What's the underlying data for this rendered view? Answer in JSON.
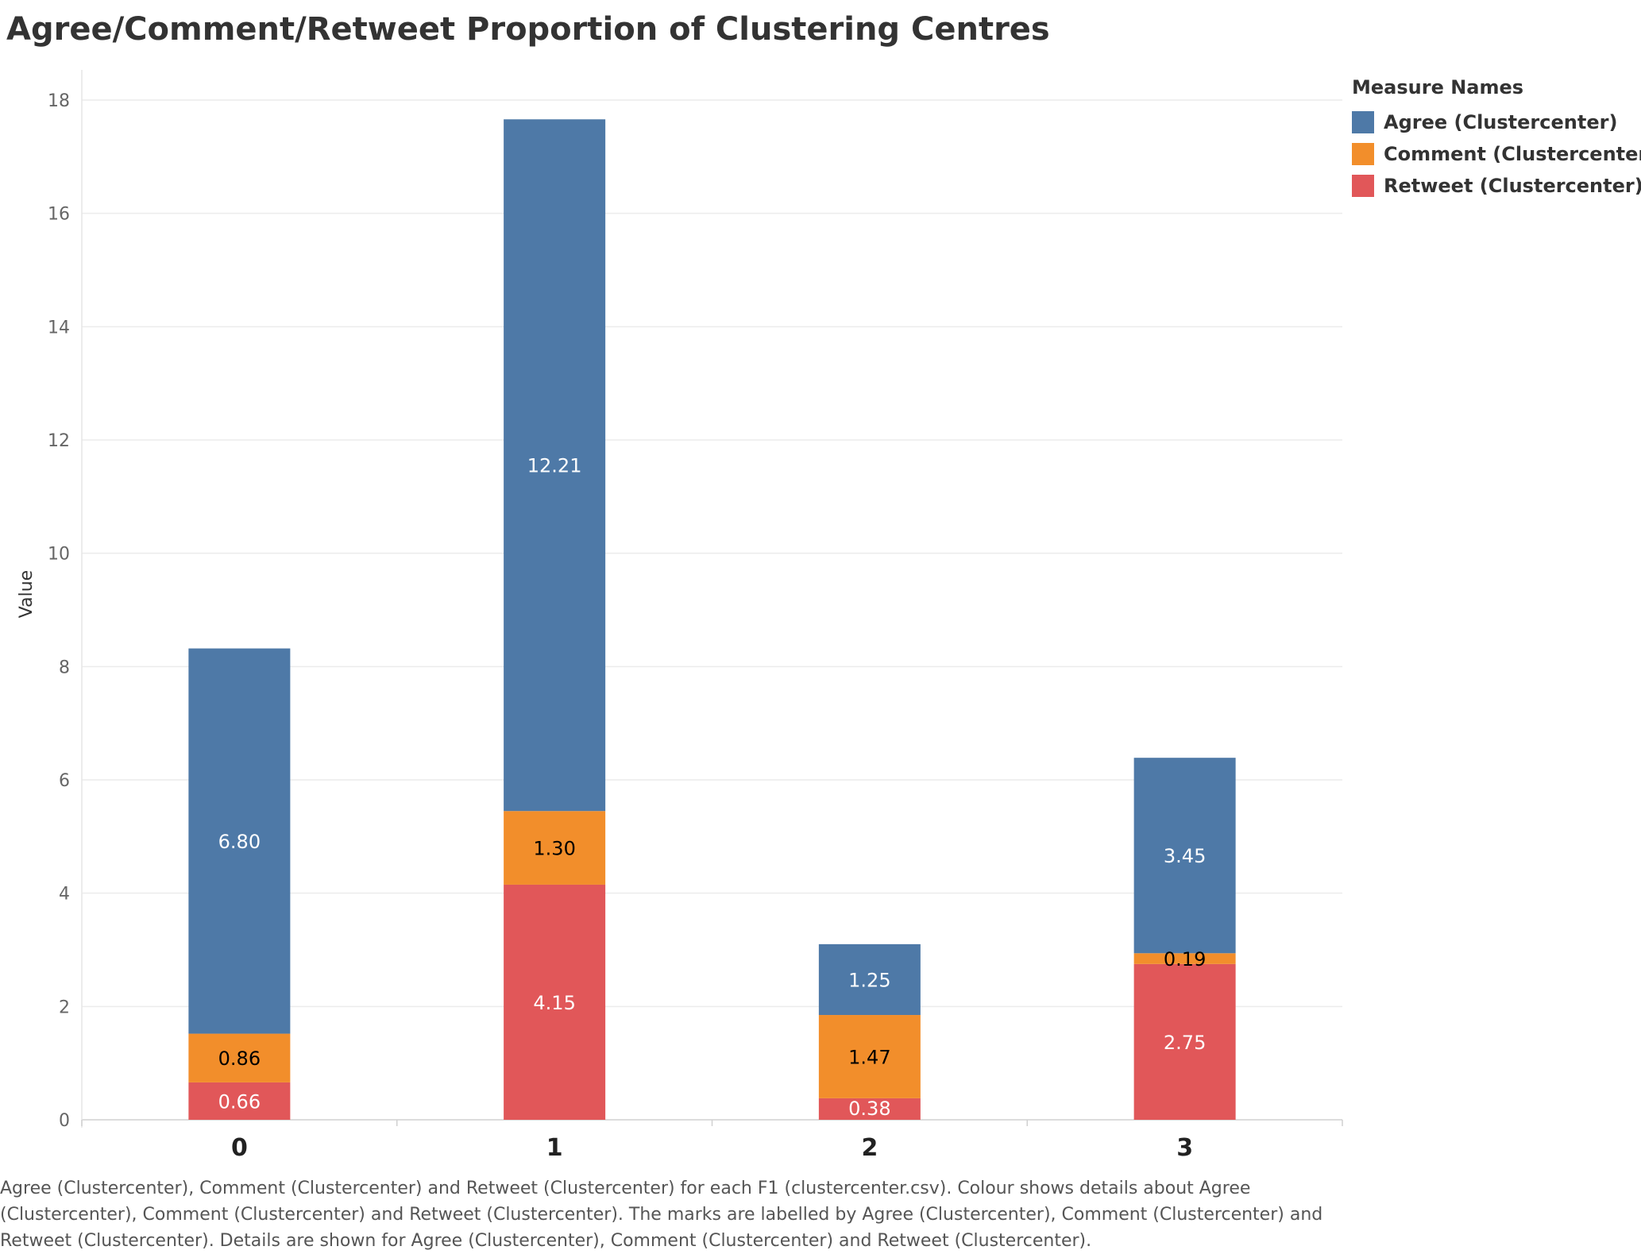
{
  "title": "Agree/Comment/Retweet Proportion of Clustering Centres",
  "legend": {
    "title": "Measure Names",
    "items": [
      {
        "label": "Agree (Clustercenter)",
        "color": "#4e79a7"
      },
      {
        "label": "Comment (Clustercenter)",
        "color": "#f28e2b"
      },
      {
        "label": "Retweet (Clustercenter)",
        "color": "#e15759"
      }
    ]
  },
  "caption": "Agree (Clustercenter), Comment (Clustercenter) and Retweet (Clustercenter) for each F1 (clustercenter.csv).  Colour shows details about Agree (Clustercenter), Comment (Clustercenter) and Retweet (Clustercenter).  The marks are labelled by Agree (Clustercenter), Comment (Clustercenter) and Retweet (Clustercenter).  Details are shown for Agree (Clustercenter), Comment (Clustercenter) and Retweet (Clustercenter).",
  "chart_data": {
    "type": "bar",
    "stacked": true,
    "title": "Agree/Comment/Retweet Proportion of Clustering Centres",
    "xlabel": "",
    "ylabel": "Value",
    "categories": [
      "0",
      "1",
      "2",
      "3"
    ],
    "ylim": [
      0,
      18
    ],
    "yticks": [
      0,
      2,
      4,
      6,
      8,
      10,
      12,
      14,
      16,
      18
    ],
    "grid": true,
    "legend_position": "top-right",
    "series": [
      {
        "name": "Retweet (Clustercenter)",
        "color": "#e15759",
        "label_color": "#ffffff",
        "values": [
          0.66,
          4.15,
          0.38,
          2.75
        ],
        "labels": [
          "0.66",
          "4.15",
          "0.38",
          "2.75"
        ]
      },
      {
        "name": "Comment (Clustercenter)",
        "color": "#f28e2b",
        "label_color": "#000000",
        "values": [
          0.86,
          1.3,
          1.47,
          0.19
        ],
        "labels": [
          "0.86",
          "1.30",
          "1.47",
          "0.19"
        ]
      },
      {
        "name": "Agree (Clustercenter)",
        "color": "#4e79a7",
        "label_color": "#ffffff",
        "values": [
          6.8,
          12.21,
          1.25,
          3.45
        ],
        "labels": [
          "6.80",
          "12.21",
          "1.25",
          "3.45"
        ]
      }
    ]
  }
}
